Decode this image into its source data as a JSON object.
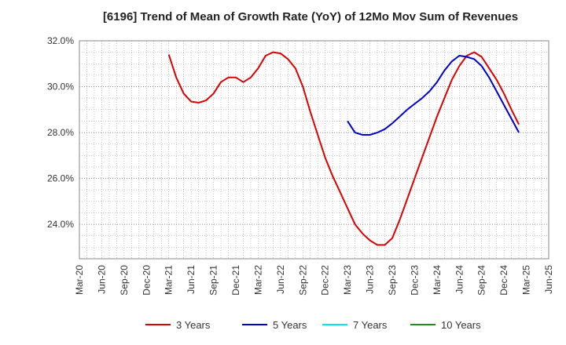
{
  "chart_data": {
    "type": "line",
    "title": "[6196]  Trend of Mean of Growth Rate (YoY) of 12Mo Mov Sum of Revenues",
    "xlabel": "",
    "ylabel": "",
    "ylim": [
      22.5,
      32.0
    ],
    "yticks": [
      24.0,
      26.0,
      28.0,
      30.0,
      32.0
    ],
    "ytick_labels": [
      "24.0%",
      "26.0%",
      "28.0%",
      "30.0%",
      "32.0%"
    ],
    "x_start": "Mar-20",
    "x_end": "Jun-25",
    "xtick_labels": [
      "Mar-20",
      "Jun-20",
      "Sep-20",
      "Dec-20",
      "Mar-21",
      "Jun-21",
      "Sep-21",
      "Dec-21",
      "Mar-22",
      "Jun-22",
      "Sep-22",
      "Dec-22",
      "Mar-23",
      "Jun-23",
      "Sep-23",
      "Dec-23",
      "Mar-24",
      "Jun-24",
      "Sep-24",
      "Dec-24",
      "Mar-25",
      "Jun-25"
    ],
    "grid": true,
    "legend_position": "bottom",
    "series": [
      {
        "name": "3 Years",
        "color": "#dd0000",
        "start_month_index": 12,
        "values": [
          31.4,
          30.4,
          29.7,
          29.35,
          29.3,
          29.4,
          29.7,
          30.2,
          30.4,
          30.4,
          30.2,
          30.4,
          30.8,
          31.35,
          31.5,
          31.45,
          31.2,
          30.8,
          30.0,
          28.9,
          27.9,
          26.9,
          26.1,
          25.4,
          24.7,
          24.0,
          23.6,
          23.3,
          23.1,
          23.1,
          23.4,
          24.2,
          25.1,
          26.0,
          26.9,
          27.8,
          28.7,
          29.5,
          30.3,
          30.9,
          31.35,
          31.5,
          31.3,
          30.8,
          30.3,
          29.7,
          29.0,
          28.35
        ]
      },
      {
        "name": "5 Years",
        "color": "#0000cc",
        "start_month_index": 36,
        "values": [
          28.5,
          28.0,
          27.9,
          27.9,
          28.0,
          28.15,
          28.4,
          28.7,
          29.0,
          29.25,
          29.5,
          29.8,
          30.2,
          30.7,
          31.1,
          31.35,
          31.3,
          31.2,
          30.9,
          30.4,
          29.8,
          29.2,
          28.6,
          28.0
        ]
      },
      {
        "name": "7 Years",
        "color": "#00e5ee",
        "start_month_index": null,
        "values": []
      },
      {
        "name": "10 Years",
        "color": "#228b22",
        "start_month_index": null,
        "values": []
      }
    ]
  }
}
